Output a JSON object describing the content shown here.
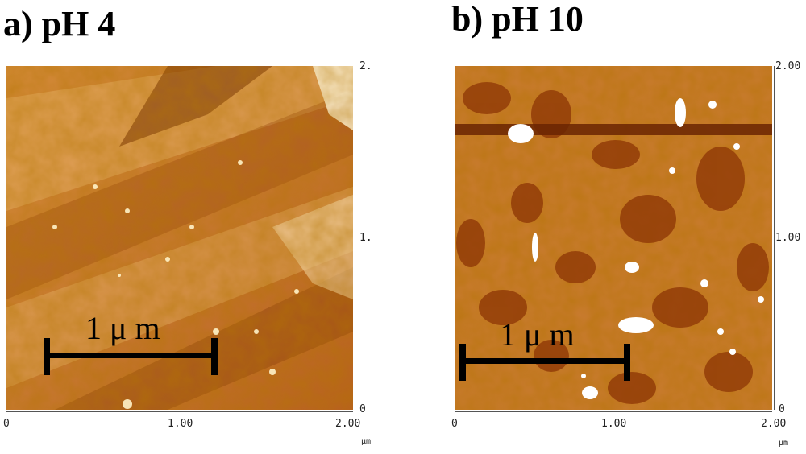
{
  "panel_a": {
    "title": "a) pH 4",
    "scale_label": "1 μ m",
    "x_ticks": [
      "0",
      "1.00",
      "2.00"
    ],
    "y_ticks": [
      "2.",
      "1.",
      "0"
    ],
    "unit": "μm"
  },
  "panel_b": {
    "title": "b) pH 10",
    "scale_label": "1 μ m",
    "x_ticks": [
      "0",
      "1.00",
      "2.00"
    ],
    "y_ticks": [
      "2.00",
      "1.00",
      "0"
    ],
    "unit": "μm"
  },
  "colors": {
    "dark": "#7a2f00",
    "mid": "#c4782a",
    "light": "#f3d6a0"
  }
}
